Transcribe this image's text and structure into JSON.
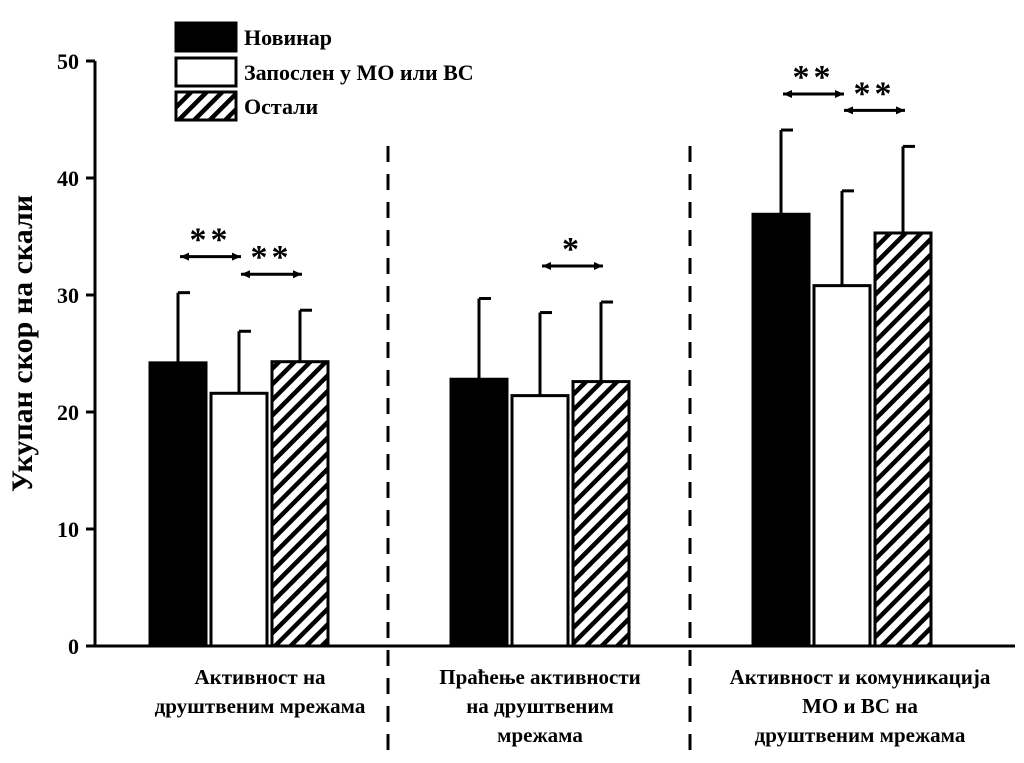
{
  "chart_data": {
    "type": "bar",
    "ylabel": "Укупан скор на скали",
    "ylim": [
      0,
      50
    ],
    "yticks": [
      0,
      10,
      20,
      30,
      40,
      50
    ],
    "legend_position": "top-left",
    "categories": [
      [
        "Активност на",
        "друштвеним мрежама"
      ],
      [
        "Праћење активности",
        "на друштвеним",
        "мрежама"
      ],
      [
        "Активност и комуникација",
        "МО и ВС на",
        "друштвеним мрежама"
      ]
    ],
    "series": [
      {
        "name": "Новинар",
        "fill": "solid",
        "color": "#000000",
        "values": [
          24.2,
          22.8,
          36.9
        ],
        "errors": [
          6.0,
          6.9,
          7.2
        ]
      },
      {
        "name": "Запослен у МО или ВС",
        "fill": "white",
        "color": "#ffffff",
        "values": [
          21.6,
          21.4,
          30.8
        ],
        "errors": [
          5.3,
          7.1,
          8.1
        ]
      },
      {
        "name": "Остали",
        "fill": "hatch",
        "color": "#000000",
        "values": [
          24.3,
          22.6,
          35.3
        ],
        "errors": [
          4.4,
          6.8,
          7.4
        ]
      }
    ],
    "significance": [
      {
        "group": 0,
        "from": 0,
        "to": 1,
        "label": "**"
      },
      {
        "group": 0,
        "from": 1,
        "to": 2,
        "label": "**"
      },
      {
        "group": 1,
        "from": 1,
        "to": 2,
        "label": "*"
      },
      {
        "group": 2,
        "from": 0,
        "to": 1,
        "label": "**"
      },
      {
        "group": 2,
        "from": 1,
        "to": 2,
        "label": "**"
      }
    ],
    "group_separators": "dashed"
  }
}
